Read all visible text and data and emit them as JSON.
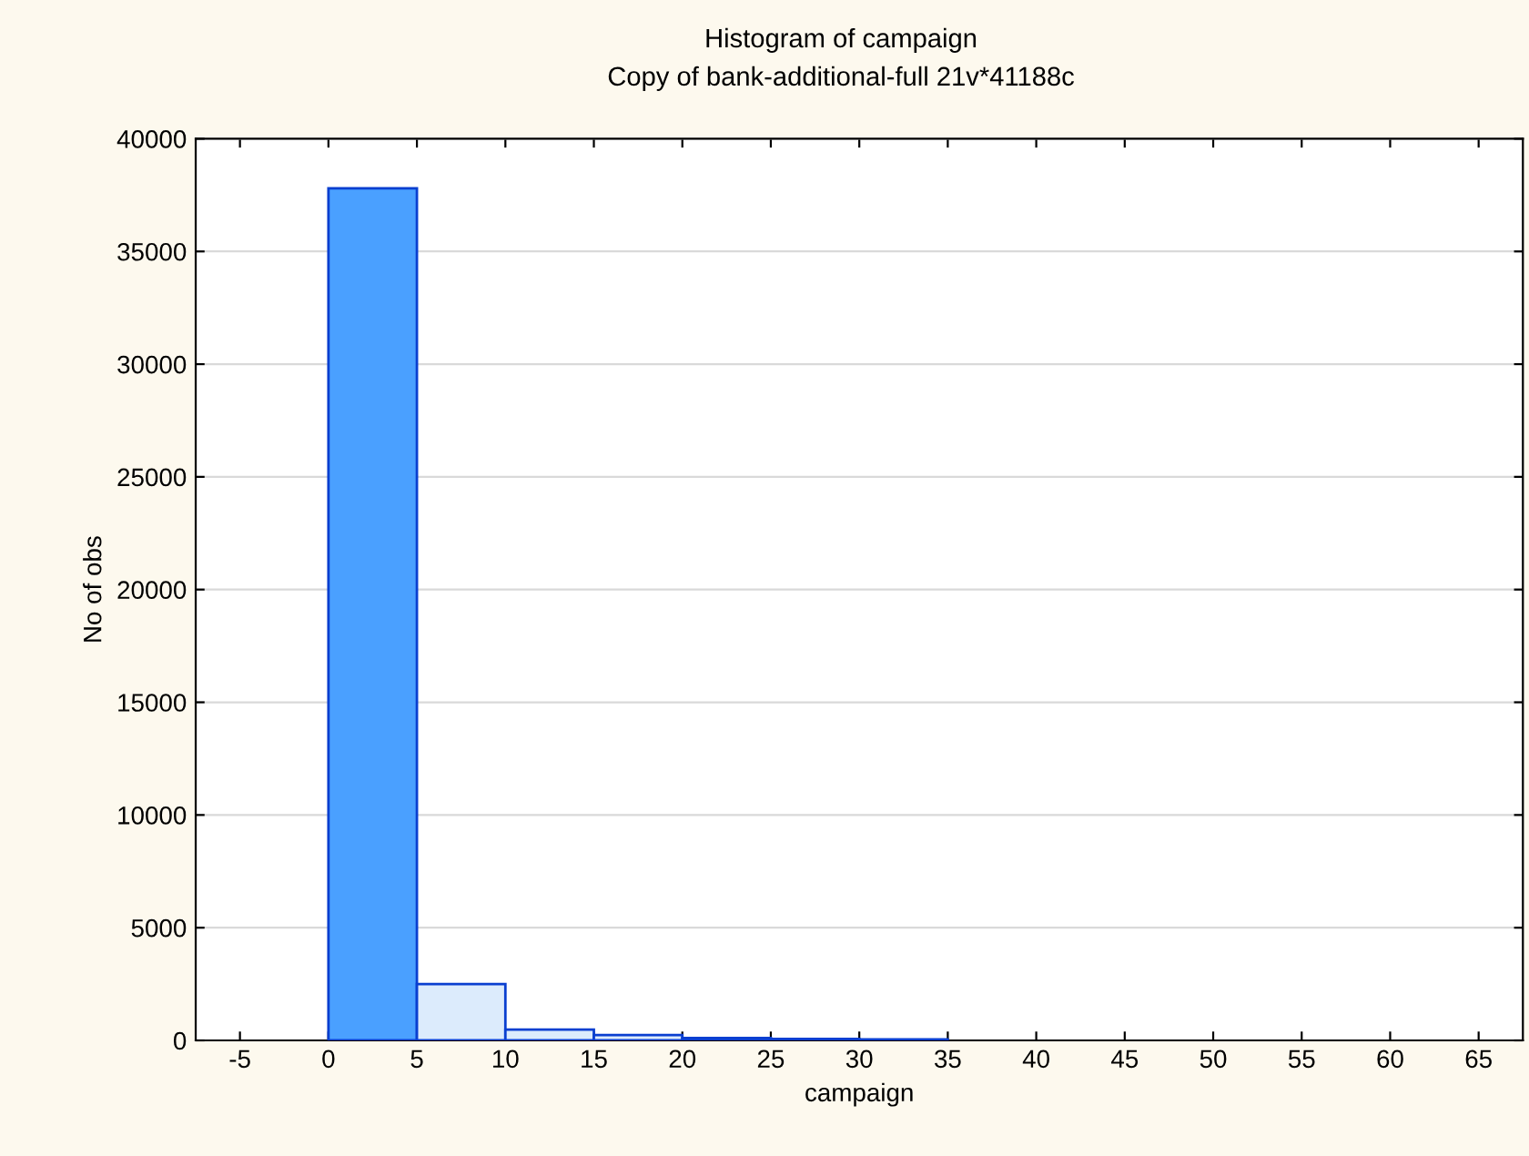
{
  "chart_data": {
    "type": "histogram",
    "title": "Histogram of campaign",
    "subtitle": "Copy of bank-additional-full 21v*41188c",
    "xlabel": "campaign",
    "ylabel": "No of obs",
    "bins": [
      0,
      5,
      10,
      15,
      20,
      25,
      30,
      35
    ],
    "values": [
      37800,
      2500,
      480,
      240,
      110,
      70,
      40
    ],
    "colors": [
      "#4aa0ff",
      "#dcebfc",
      "#dcebfc",
      "#dcebfc",
      "#dcebfc",
      "#dcebfc",
      "#dcebfc"
    ],
    "xlim": [
      -7.5,
      67.5
    ],
    "xticks": [
      -5,
      0,
      5,
      10,
      15,
      20,
      25,
      30,
      35,
      40,
      45,
      50,
      55,
      60,
      65
    ],
    "ylim": [
      0,
      40000
    ],
    "yticks": [
      0,
      5000,
      10000,
      15000,
      20000,
      25000,
      30000,
      35000,
      40000
    ],
    "grid": "y"
  }
}
